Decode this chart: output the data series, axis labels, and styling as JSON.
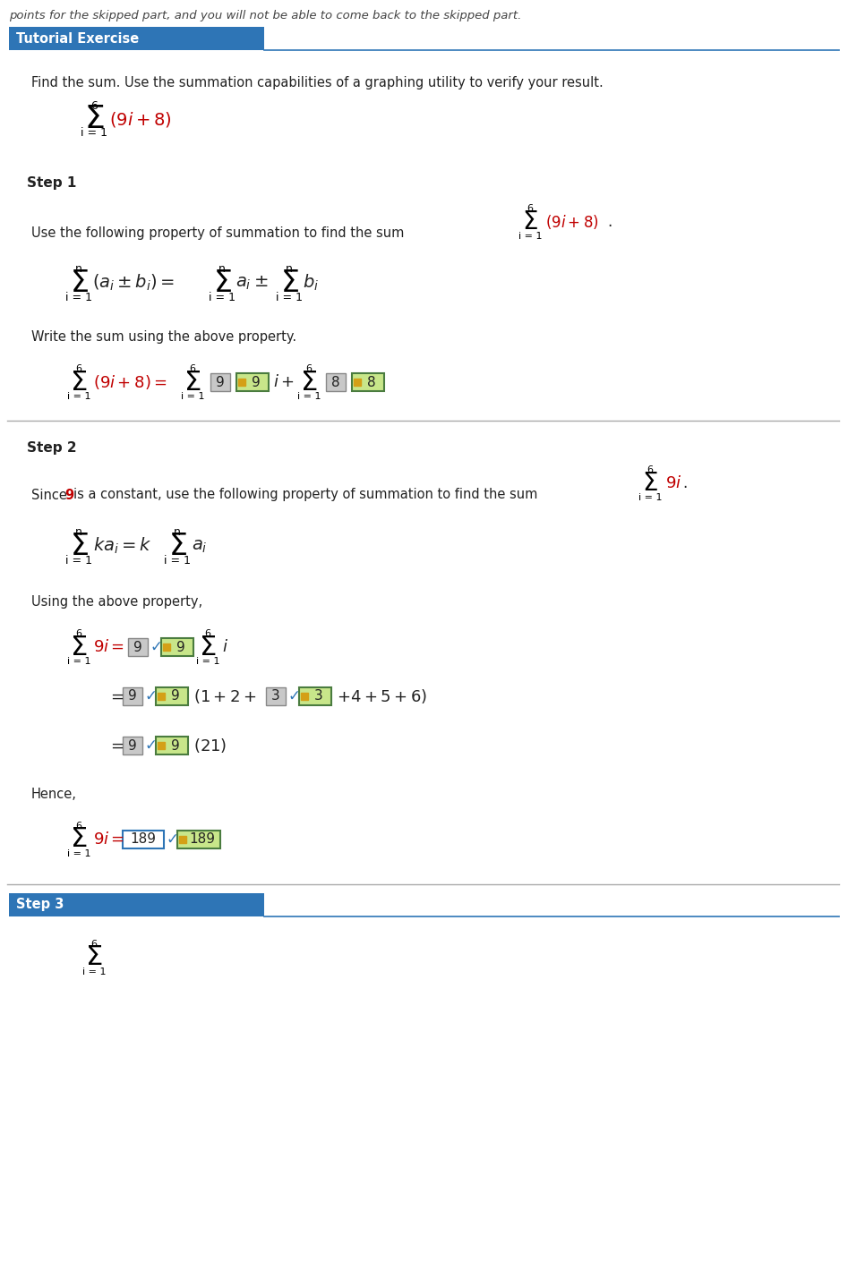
{
  "bg_color": "#ffffff",
  "top_italic_text": "points for the skipped part, and you will not be able to come back to the skipped part.",
  "header_bg": "#2e75b6",
  "header_text": "Tutorial Exercise",
  "intro_text": "Find the sum. Use the summation capabilities of a graphing utility to verify your result.",
  "step1_label": "Step 1",
  "step1_text": "Use the following property of summation to find the sum",
  "write_sum_text": "Write the sum using the above property.",
  "step2_label": "Step 2",
  "step2_text": "is a constant, use the following property of summation to find the sum",
  "using_above": "Using the above property,",
  "hence_text": "Hence,",
  "step3_label": "Step 3",
  "divider_color": "#aaaaaa",
  "red_color": "#c00000",
  "green_border": "#4a7c3f",
  "green_fill": "#c8e68a",
  "gray_fill": "#c8c8c8",
  "gray_border": "#888888",
  "ans_border": "#2e75b6",
  "check_color": "#2e75b6",
  "text_color": "#222222",
  "italic_color": "#444444"
}
